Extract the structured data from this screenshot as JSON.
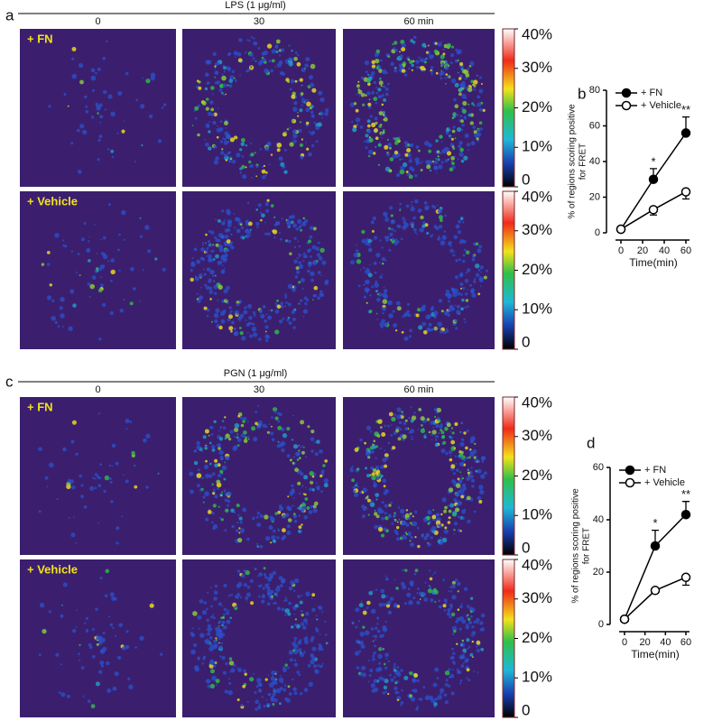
{
  "panels": [
    {
      "label": "a",
      "title": "LPS (1 μg/ml)",
      "columns": [
        "0",
        "30",
        "60 min"
      ],
      "rows": [
        "+ FN",
        "+ Vehicle"
      ]
    },
    {
      "label": "c",
      "title": "PGN (1 μg/ml)",
      "columns": [
        "0",
        "30",
        "60 min"
      ],
      "rows": [
        "+ FN",
        "+ Vehicle"
      ]
    }
  ],
  "colorbar": {
    "lim": [
      0,
      40
    ],
    "ticks": [
      0,
      {
        "value": 10,
        "label": "10%"
      },
      {
        "value": 20,
        "label": "20%"
      },
      {
        "value": 30,
        "label": "30%"
      },
      {
        "value": 40,
        "label": "40%"
      }
    ]
  },
  "chart_data": [
    {
      "type": "line",
      "label": "b",
      "ylabel": [
        "% of regions scoring positive",
        "for FRET"
      ],
      "xlabel": "Time(min)",
      "xlim": [
        0,
        60
      ],
      "xticks": [
        0,
        20,
        40,
        60
      ],
      "ylim": [
        0,
        80
      ],
      "yticks": [
        0,
        20,
        40,
        60,
        80
      ],
      "x": [
        0,
        30,
        60
      ],
      "series": [
        {
          "name": "+ FN",
          "color": "#000000",
          "marker_fill": "#000000",
          "values": [
            2,
            30,
            56
          ],
          "errors": [
            null,
            6,
            9
          ]
        },
        {
          "name": "+ Vehicle",
          "color": "#000000",
          "marker_fill": "#ffffff",
          "values": [
            2,
            13,
            23
          ],
          "errors": [
            null,
            3,
            4
          ]
        }
      ],
      "annotations": [
        "*",
        "**"
      ]
    },
    {
      "type": "line",
      "label": "d",
      "ylabel": [
        "% of regions scoring positive",
        "for FRET"
      ],
      "xlabel": "Time(min)",
      "xlim": [
        0,
        60
      ],
      "xticks": [
        0,
        20,
        40,
        60
      ],
      "ylim": [
        0,
        60
      ],
      "yticks": [
        0,
        20,
        40,
        60
      ],
      "x": [
        0,
        30,
        60
      ],
      "series": [
        {
          "name": "+ FN",
          "color": "#000000",
          "marker_fill": "#000000",
          "values": [
            2,
            30,
            42
          ],
          "errors": [
            null,
            6,
            5
          ]
        },
        {
          "name": "+ Vehicle",
          "color": "#000000",
          "marker_fill": "#ffffff",
          "values": [
            2,
            13,
            18
          ],
          "errors": [
            null,
            null,
            3
          ]
        }
      ],
      "annotations": [
        "*",
        "**"
      ]
    }
  ]
}
